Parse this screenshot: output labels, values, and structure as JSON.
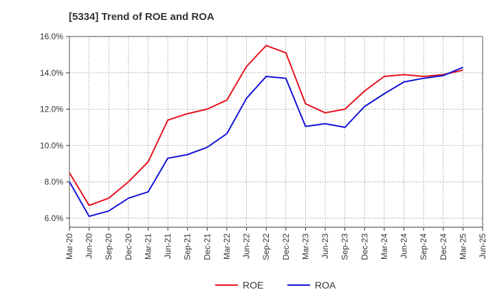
{
  "chart_data": {
    "type": "line",
    "title": "[5334]  Trend of ROE and ROA",
    "xlabel": "",
    "ylabel": "",
    "categories": [
      "Mar-20",
      "Jun-20",
      "Sep-20",
      "Dec-20",
      "Mar-21",
      "Jun-21",
      "Sep-21",
      "Dec-21",
      "Mar-22",
      "Jun-22",
      "Sep-22",
      "Dec-22",
      "Mar-23",
      "Jun-23",
      "Sep-23",
      "Dec-23",
      "Mar-24",
      "Jun-24",
      "Sep-24",
      "Dec-24",
      "Mar-25",
      "Jun-25"
    ],
    "ylim": [
      5.5,
      16.0
    ],
    "yticks": [
      6.0,
      8.0,
      10.0,
      12.0,
      14.0,
      16.0
    ],
    "ytick_labels": [
      "6.0%",
      "8.0%",
      "10.0%",
      "12.0%",
      "14.0%",
      "16.0%"
    ],
    "grid": true,
    "legend_position": "bottom",
    "series": [
      {
        "name": "ROE",
        "color": "#e8101a",
        "values": [
          8.5,
          6.7,
          7.1,
          8.0,
          9.1,
          11.4,
          11.75,
          12.0,
          12.5,
          14.35,
          15.5,
          15.1,
          12.3,
          11.8,
          12.0,
          13.0,
          13.8,
          13.9,
          13.8,
          13.9,
          14.15,
          null
        ]
      },
      {
        "name": "ROA",
        "color": "#1010d8",
        "values": [
          8.0,
          6.1,
          6.4,
          7.1,
          7.45,
          9.3,
          9.5,
          9.9,
          10.65,
          12.6,
          13.8,
          13.7,
          11.05,
          11.2,
          11.0,
          12.15,
          12.85,
          13.5,
          13.7,
          13.85,
          14.3,
          null
        ]
      }
    ]
  }
}
